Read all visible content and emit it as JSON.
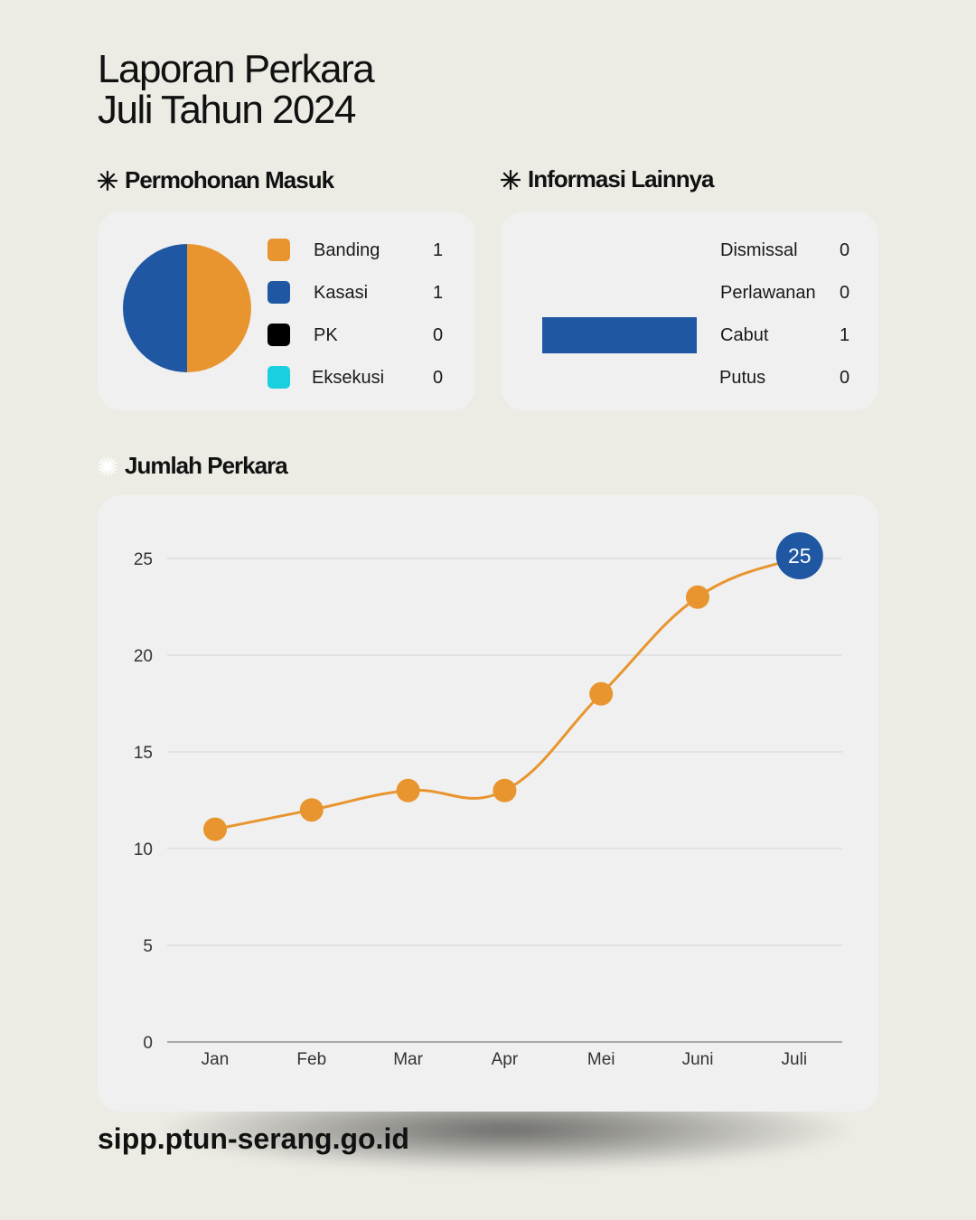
{
  "header": {
    "title_line1": "Laporan Perkara",
    "title_line2": "Juli Tahun 2024"
  },
  "sections": {
    "permohonan_title": "Permohonan Masuk",
    "informasi_title": "Informasi Lainnya",
    "jumlah_title": "Jumlah Perkara"
  },
  "permohonan": {
    "items": [
      {
        "label": "Banding",
        "value": "1",
        "color": "#e8952f"
      },
      {
        "label": "Kasasi",
        "value": "1",
        "color": "#1f57a3"
      },
      {
        "label": "PK",
        "value": "0",
        "color": "#000000"
      },
      {
        "label": "Eksekusi",
        "value": "0",
        "color": "#19cfe0"
      }
    ]
  },
  "informasi": {
    "items": [
      {
        "label": "Dismissal",
        "value": "0"
      },
      {
        "label": "Perlawanan",
        "value": "0"
      },
      {
        "label": "Cabut",
        "value": "1"
      },
      {
        "label": "Putus",
        "value": "0"
      }
    ],
    "bar_color": "#1f57a3"
  },
  "chart_data": [
    {
      "type": "pie",
      "categories": [
        "Banding",
        "Kasasi",
        "PK",
        "Eksekusi"
      ],
      "values": [
        1,
        1,
        0,
        0
      ],
      "colors": [
        "#e8952f",
        "#1f57a3",
        "#000000",
        "#19cfe0"
      ]
    },
    {
      "type": "bar",
      "orientation": "horizontal",
      "categories": [
        "Dismissal",
        "Perlawanan",
        "Cabut",
        "Putus"
      ],
      "values": [
        0,
        0,
        1,
        0
      ],
      "color": "#1f57a3"
    },
    {
      "type": "line",
      "categories": [
        "Jan",
        "Feb",
        "Mar",
        "Apr",
        "Mei",
        "Juni",
        "Juli"
      ],
      "values": [
        11,
        12,
        13,
        13,
        18,
        23,
        25
      ],
      "ylim": [
        0,
        25
      ],
      "yticks": [
        0,
        5,
        10,
        15,
        20,
        25
      ],
      "grid": true,
      "line_color": "#e8952f",
      "highlight_color": "#1f57a3",
      "highlight_label": "25"
    }
  ],
  "footer": {
    "url": "sipp.ptun-serang.go.id"
  }
}
